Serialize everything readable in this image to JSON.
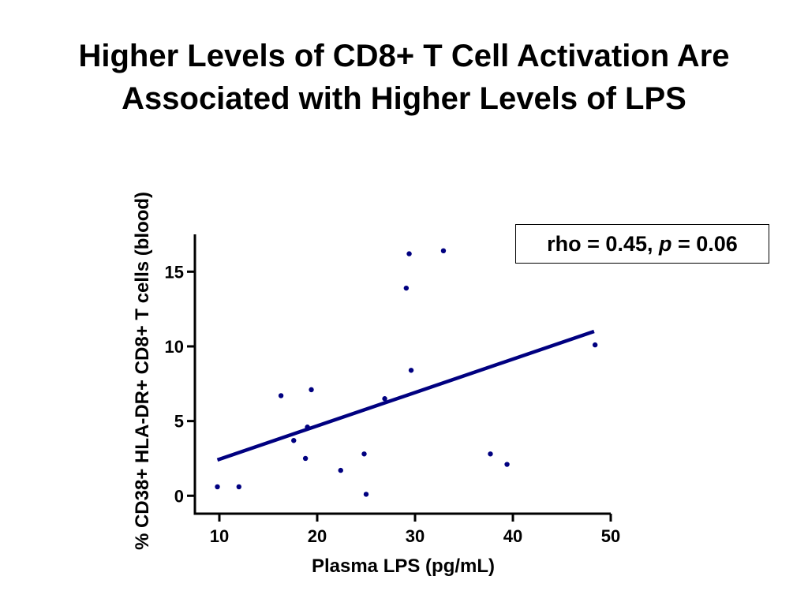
{
  "slide": {
    "title_line1": "Higher Levels of CD8+ T Cell Activation Are",
    "title_line2": "Associated with Higher Levels of LPS"
  },
  "annotation": {
    "prefix": "rho = 0.45, ",
    "p_symbol": "p",
    "suffix": " = 0.06"
  },
  "colors": {
    "points": "#000080",
    "fit_line": "#000080",
    "axes": "#000000"
  },
  "chart_data": {
    "type": "scatter",
    "title": "",
    "xlabel": "Plasma LPS (pg/mL)",
    "ylabel": "% CD38+ HLA-DR+ CD8+ T cells (blood)",
    "xlim": [
      7.5,
      50
    ],
    "ylim": [
      -1.2,
      17.5
    ],
    "xticks": [
      10,
      20,
      30,
      40,
      50
    ],
    "yticks": [
      0,
      5,
      10,
      15
    ],
    "grid": false,
    "legend": "none",
    "points": [
      {
        "x": 9.8,
        "y": 0.6
      },
      {
        "x": 12.0,
        "y": 0.6
      },
      {
        "x": 16.3,
        "y": 6.7
      },
      {
        "x": 17.6,
        "y": 3.7
      },
      {
        "x": 18.8,
        "y": 2.5
      },
      {
        "x": 19.0,
        "y": 4.6
      },
      {
        "x": 19.4,
        "y": 7.1
      },
      {
        "x": 22.4,
        "y": 1.7
      },
      {
        "x": 24.8,
        "y": 2.8
      },
      {
        "x": 25.0,
        "y": 0.1
      },
      {
        "x": 26.9,
        "y": 6.5
      },
      {
        "x": 29.1,
        "y": 13.9
      },
      {
        "x": 29.4,
        "y": 16.2
      },
      {
        "x": 29.6,
        "y": 8.4
      },
      {
        "x": 32.9,
        "y": 16.4
      },
      {
        "x": 37.7,
        "y": 2.8
      },
      {
        "x": 39.4,
        "y": 2.1
      },
      {
        "x": 48.4,
        "y": 10.1
      }
    ],
    "fit_line": {
      "x": [
        9.8,
        48.3
      ],
      "y": [
        2.4,
        11.0
      ]
    },
    "annotation": "rho = 0.45, p = 0.06"
  }
}
